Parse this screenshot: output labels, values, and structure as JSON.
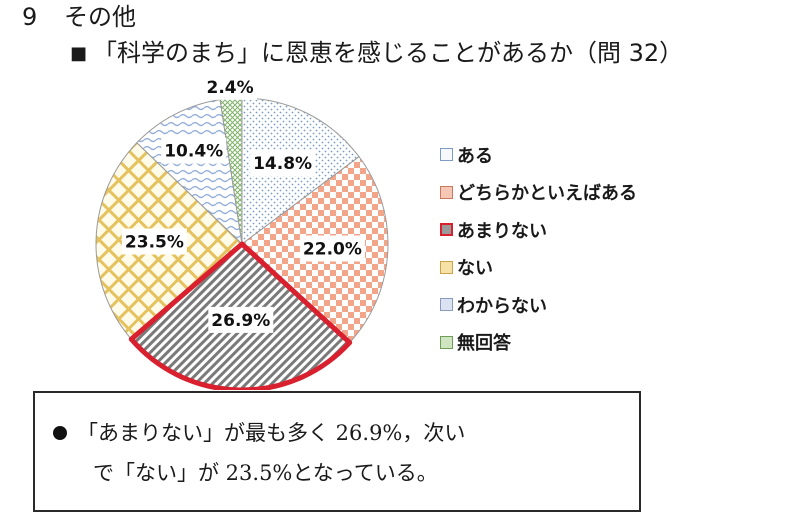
{
  "page": {
    "section_number": "9",
    "section_title": "その他",
    "question_title": "「科学のまち」に恩恵を感じることがあるか（問 32）"
  },
  "chart_data": {
    "type": "pie",
    "title": "「科学のまち」に恩恵を感じることがあるか（問 32）",
    "start_angle_deg": 0,
    "direction": "clockwise",
    "highlighted_category": "あまりない",
    "categories": [
      "ある",
      "どちらかといえばある",
      "あまりない",
      "ない",
      "わからない",
      "無回答"
    ],
    "values": [
      14.8,
      22.0,
      26.9,
      23.5,
      10.4,
      2.4
    ],
    "value_labels": [
      "14.8%",
      "22.0%",
      "26.9%",
      "23.5%",
      "10.4%",
      "2.4%"
    ],
    "colors": [
      "#ffffff",
      "#f3a58a",
      "#8c8c8c",
      "#f1d27a",
      "#b9c8e6",
      "#a8cf8e"
    ],
    "patterns": [
      "dots",
      "checker",
      "diagonal-stripes",
      "diamond-grid",
      "waves",
      "crosshatch"
    ]
  },
  "summary": {
    "line1": "「あまりない」が最も多く 26.9%，次い",
    "line2": "で「ない」が 23.5%となっている。"
  }
}
